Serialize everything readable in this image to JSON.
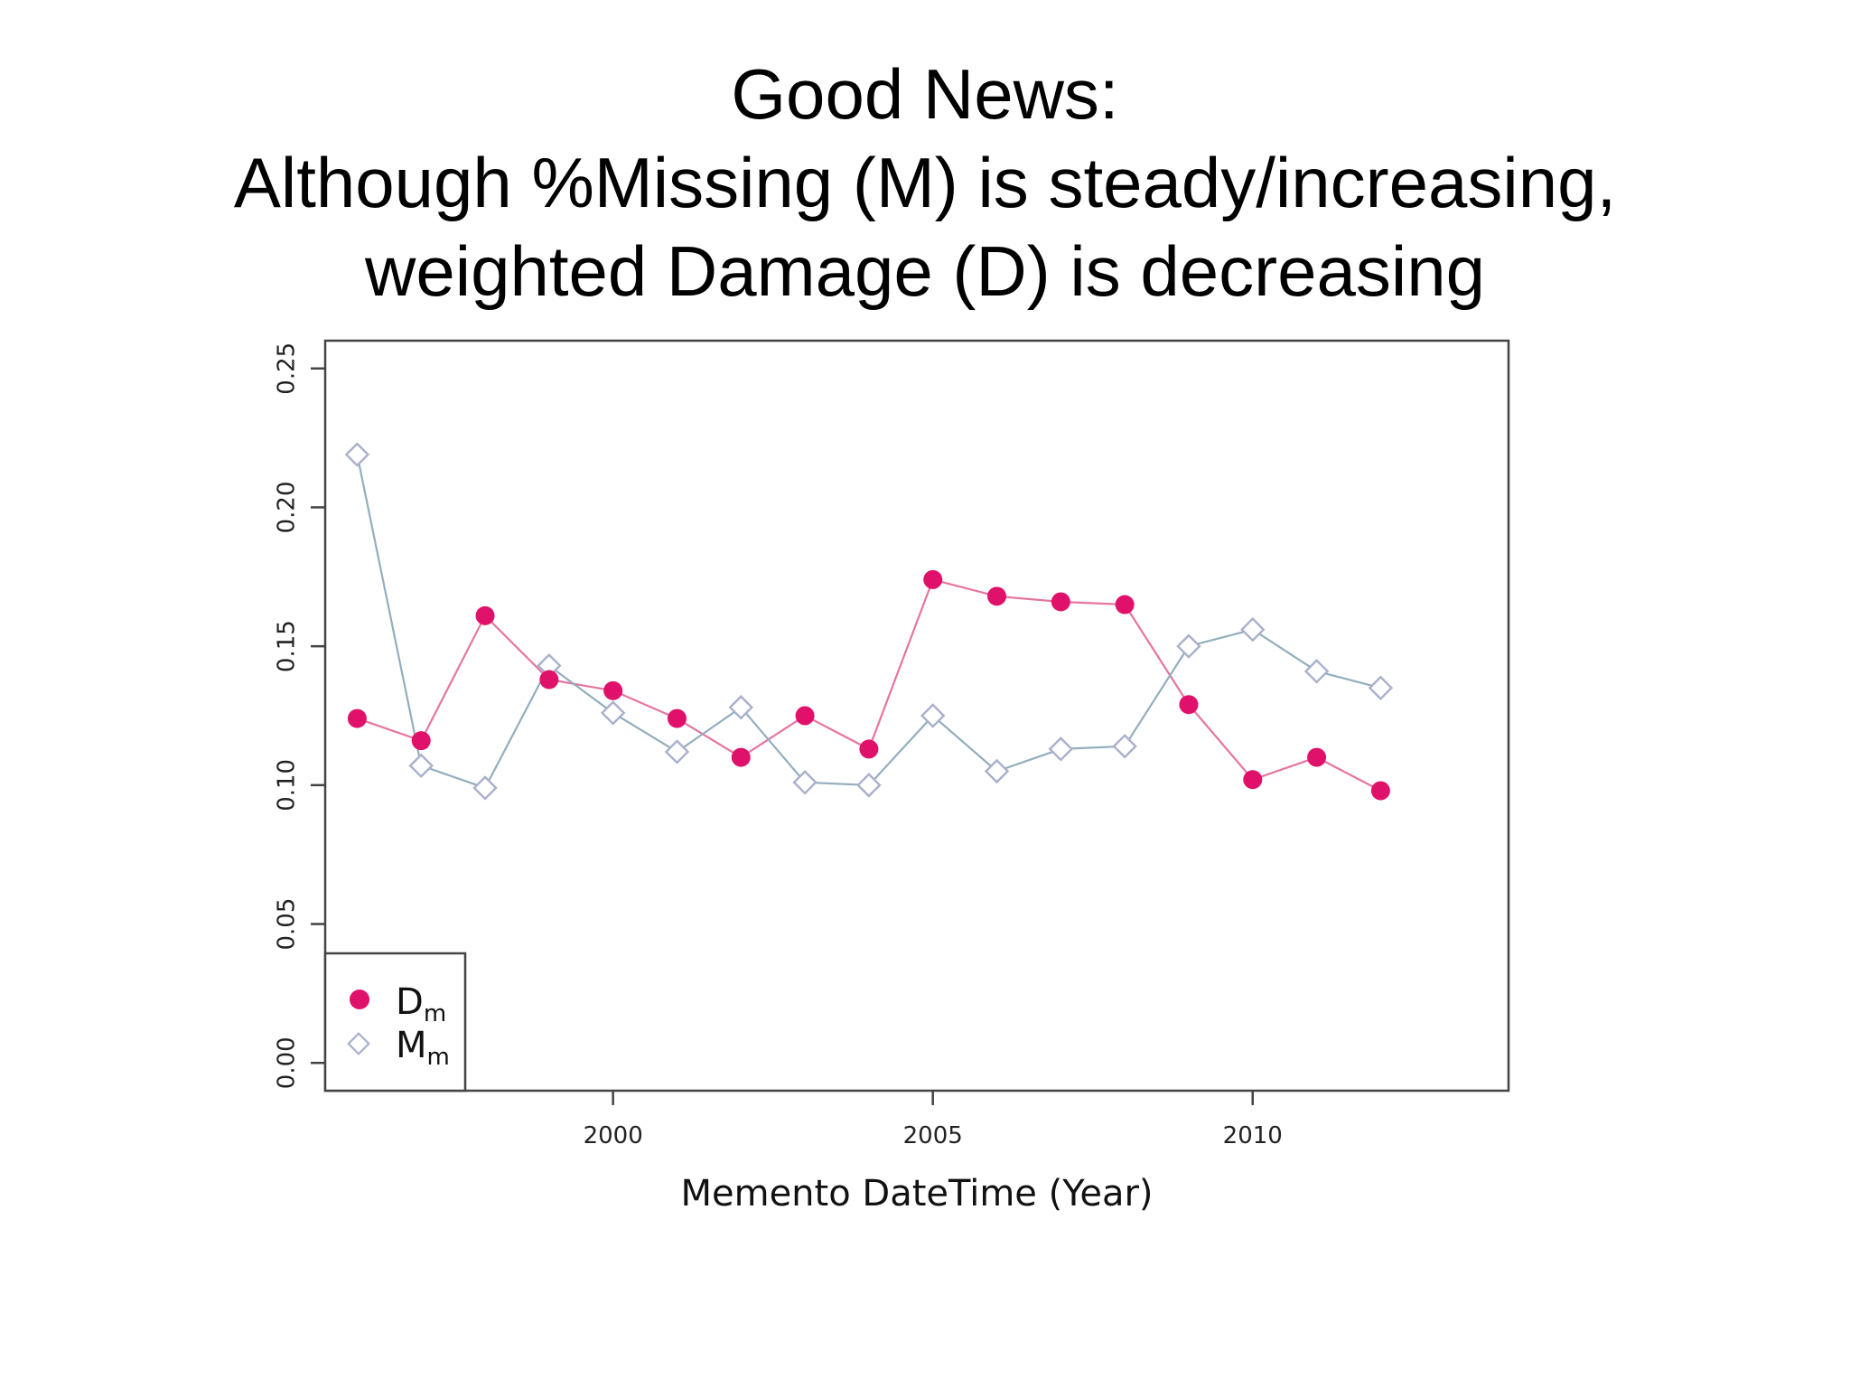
{
  "slide": {
    "title_lines": [
      "Good News:",
      "Although %Missing (M) is steady/increasing,",
      "weighted Damage (D) is decreasing"
    ]
  },
  "chart_data": {
    "type": "line",
    "xlabel": "Memento DateTime (Year)",
    "ylabel": "",
    "xlim": [
      1995.5,
      2014
    ],
    "ylim": [
      -0.01,
      0.26
    ],
    "x_ticks": [
      2000,
      2005,
      2010
    ],
    "y_ticks": [
      0.0,
      0.05,
      0.1,
      0.15,
      0.2,
      0.25
    ],
    "x_tick_labels": [
      "2000",
      "2005",
      "2010"
    ],
    "y_tick_labels": [
      "0.00",
      "0.05",
      "0.10",
      "0.15",
      "0.20",
      "0.25"
    ],
    "x": [
      1996,
      1997,
      1998,
      1999,
      2000,
      2001,
      2002,
      2003,
      2004,
      2005,
      2006,
      2007,
      2008,
      2009,
      2010,
      2011,
      2012
    ],
    "grid": false,
    "legend_position": "bottom-left",
    "series": [
      {
        "name": "D",
        "subscript": "m",
        "color": "#e0116a",
        "line_color": "#e6759f",
        "marker": "filled-circle",
        "values": [
          0.124,
          0.116,
          0.161,
          0.138,
          0.134,
          0.124,
          0.11,
          0.125,
          0.113,
          0.174,
          0.168,
          0.166,
          0.165,
          0.129,
          0.102,
          0.11,
          0.098
        ]
      },
      {
        "name": "M",
        "subscript": "m",
        "color": "#a9b0cc",
        "line_color": "#93aebe",
        "marker": "open-diamond",
        "values": [
          0.219,
          0.107,
          0.099,
          0.143,
          0.126,
          0.112,
          0.128,
          0.101,
          0.1,
          0.125,
          0.105,
          0.113,
          0.114,
          0.15,
          0.156,
          0.141,
          0.135
        ]
      }
    ]
  }
}
